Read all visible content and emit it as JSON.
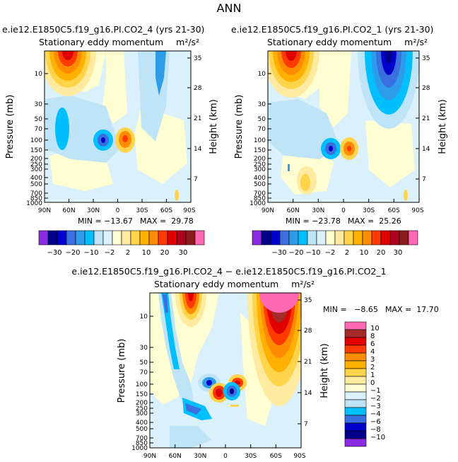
{
  "page_title": "ANN",
  "chart_data": [
    {
      "type": "heatmap",
      "title": "e.ie12.E1850C5.f19_g16.PI.CO2_4 (yrs 21-30)",
      "subtitle": "Stationary eddy momentum",
      "units": "m²/s²",
      "ylabel": "Pressure (mb)",
      "y2label": "Height (km)",
      "x_ticks": [
        "90N",
        "60N",
        "30N",
        "0",
        "30S",
        "60S",
        "90S"
      ],
      "y_ticks": [
        "10",
        "30",
        "50",
        "70",
        "100",
        "150",
        "200",
        "250",
        "300",
        "400",
        "500",
        "700",
        "850",
        "1000"
      ],
      "y2_ticks": [
        "35",
        "28",
        "21",
        "14",
        "7"
      ],
      "min_label": "MIN = −13.67",
      "max_label": "MAX =  29.78",
      "min": -13.67,
      "max": 29.78,
      "colorbar_labels": [
        "−30",
        "−20",
        "−10",
        "−2",
        "2",
        "10",
        "20",
        "30"
      ],
      "colorbar_orientation": "horizontal"
    },
    {
      "type": "heatmap",
      "title": "e.ie12.E1850C5.f19_g16.PI.CO2_1 (yrs 21-30)",
      "subtitle": "Stationary eddy momentum",
      "units": "m²/s²",
      "ylabel": "Pressure (mb)",
      "y2label": "Height (km)",
      "x_ticks": [
        "90N",
        "60N",
        "30N",
        "0",
        "30S",
        "60S",
        "90S"
      ],
      "y_ticks": [
        "10",
        "30",
        "50",
        "70",
        "100",
        "150",
        "200",
        "250",
        "300",
        "400",
        "500",
        "700",
        "850",
        "1000"
      ],
      "y2_ticks": [
        "35",
        "28",
        "21",
        "14",
        "7"
      ],
      "min_label": "MIN = −23.78",
      "max_label": "MAX =  25.26",
      "min": -23.78,
      "max": 25.26,
      "colorbar_labels": [
        "−30",
        "−20",
        "−10",
        "−2",
        "2",
        "10",
        "20",
        "30"
      ],
      "colorbar_orientation": "horizontal"
    },
    {
      "type": "heatmap",
      "title": "e.ie12.E1850C5.f19_g16.PI.CO2_4 − e.ie12.E1850C5.f19_g16.PI.CO2_1",
      "subtitle": "Stationary eddy momentum",
      "units": "m²/s²",
      "ylabel": "Pressure (mb)",
      "y2label": "Height (km)",
      "x_ticks": [
        "90N",
        "60N",
        "30N",
        "0",
        "30S",
        "60S",
        "90S"
      ],
      "y_ticks": [
        "10",
        "30",
        "50",
        "70",
        "100",
        "150",
        "200",
        "250",
        "300",
        "400",
        "500",
        "700",
        "850",
        "1000"
      ],
      "y2_ticks": [
        "35",
        "28",
        "21",
        "14",
        "7"
      ],
      "min_label": "MIN =   −8.65",
      "max_label": "MAX =  17.70",
      "min": -8.65,
      "max": 17.7,
      "colorbar_labels": [
        "10",
        "8",
        "6",
        "4",
        "3",
        "2",
        "1",
        "0",
        "−1",
        "−2",
        "−3",
        "−4",
        "−6",
        "−8",
        "−10"
      ],
      "colorbar_orientation": "vertical"
    }
  ],
  "colors": {
    "palette": [
      "#8a2be2",
      "#00008b",
      "#0000cd",
      "#3a6fe0",
      "#2e9ce8",
      "#00bfff",
      "#bfe4f7",
      "#daf0fb",
      "#fffed3",
      "#ffeaa0",
      "#ffd34a",
      "#ffb000",
      "#ff8c00",
      "#ff3a00",
      "#e00000",
      "#b00020",
      "#8b1a1a",
      "#ff69b4"
    ],
    "diff_palette": [
      "#ff69b4",
      "#a52a2a",
      "#e00000",
      "#ff3a00",
      "#ff8c00",
      "#ffb000",
      "#ffd34a",
      "#ffeaa0",
      "#fffed3",
      "#daf0fb",
      "#bfe4f7",
      "#00bfff",
      "#3a6fe0",
      "#0000cd",
      "#00008b",
      "#8a2be2"
    ]
  }
}
